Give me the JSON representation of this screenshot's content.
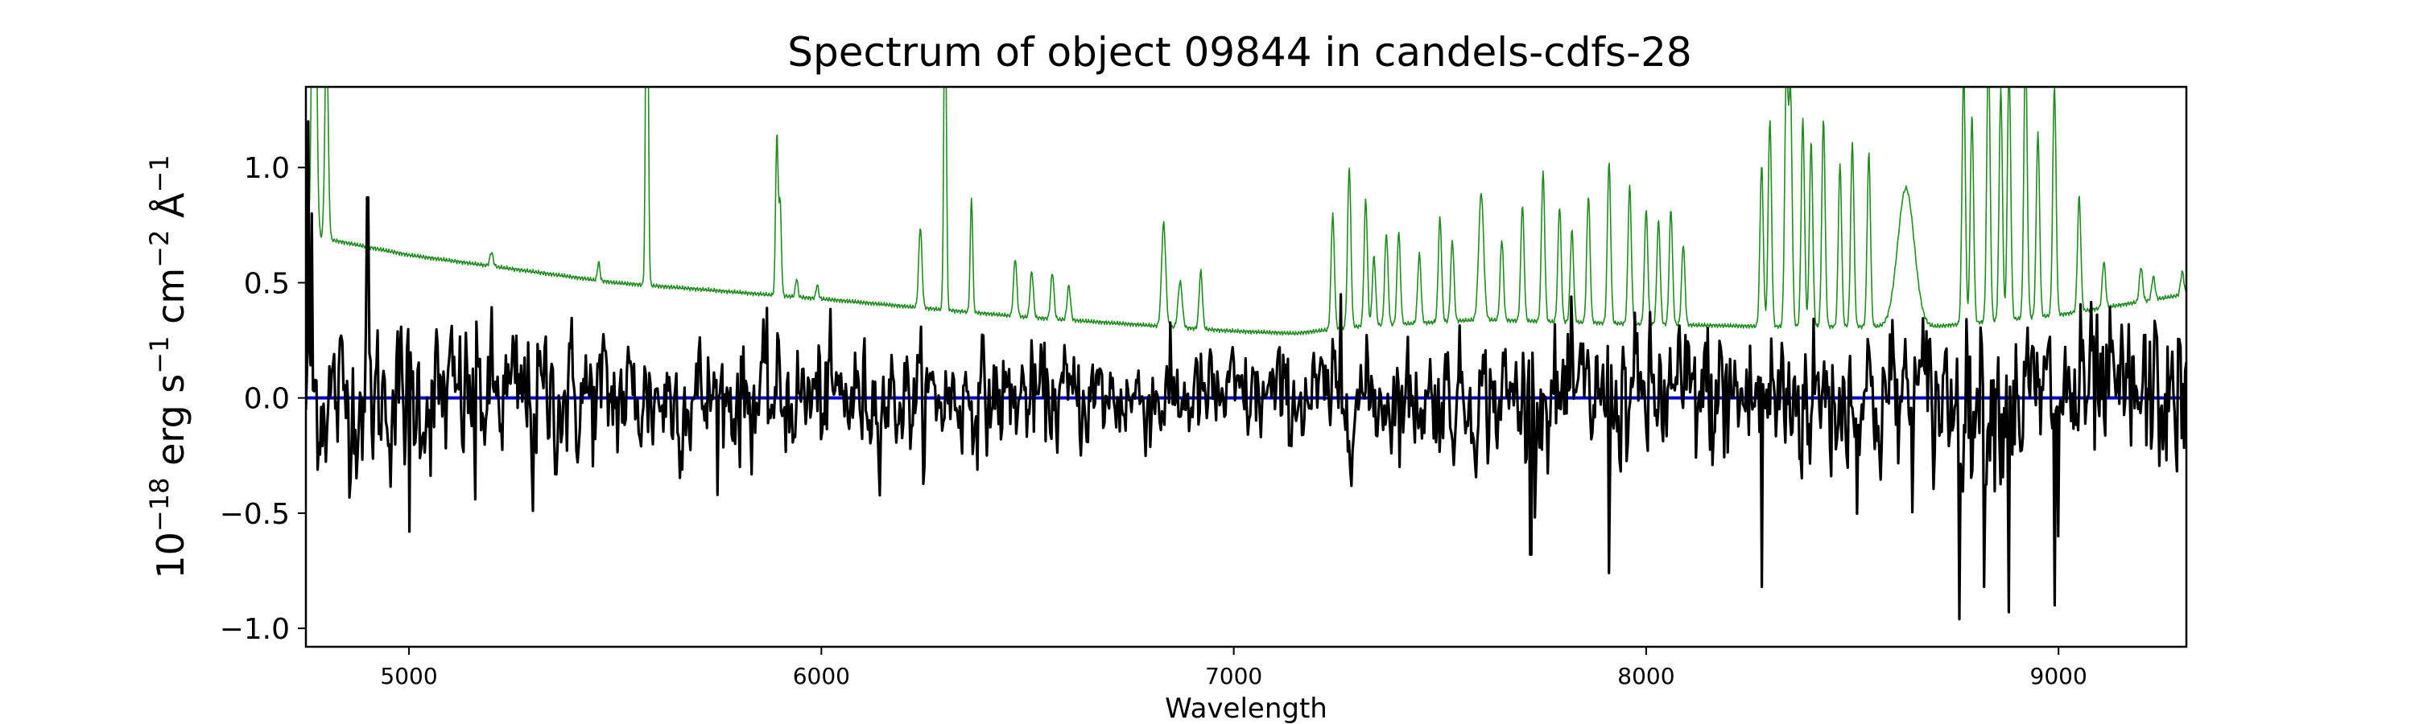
{
  "chart_data": {
    "type": "line",
    "title": "Spectrum of object 09844 in candels-cdfs-28",
    "xlabel": "Wavelength",
    "ylabel_parts": [
      "10",
      "−18",
      " erg s",
      "−1",
      " cm",
      "−2",
      " Å",
      "−1"
    ],
    "xlim": [
      4750,
      9310
    ],
    "ylim": [
      -1.08,
      1.35
    ],
    "x_ticks": [
      5000,
      6000,
      7000,
      8000,
      9000
    ],
    "x_tick_labels": [
      "5000",
      "6000",
      "7000",
      "8000",
      "9000"
    ],
    "y_ticks": [
      1.0,
      0.5,
      0.0,
      -0.5,
      -1.0
    ],
    "y_tick_labels": [
      "1.0",
      "0.5",
      "0.0",
      "−0.5",
      "−1.0"
    ],
    "grid": false,
    "series": [
      {
        "color": "#228b22",
        "continuum": {
          "x": [
            4750,
            4800,
            5000,
            5500,
            6000,
            6500,
            7000,
            7150,
            7300,
            7600,
            8000,
            8300,
            8700,
            9000,
            9310
          ],
          "y": [
            0.7,
            0.69,
            0.62,
            0.5,
            0.43,
            0.35,
            0.29,
            0.28,
            0.31,
            0.34,
            0.32,
            0.31,
            0.31,
            0.36,
            0.45
          ]
        },
        "lines": [
          [
            4770,
            1.9,
            5
          ],
          [
            4800,
            0.9,
            4
          ],
          [
            5200,
            0.06,
            4
          ],
          [
            5460,
            0.08,
            3
          ],
          [
            5577,
            1.9,
            3
          ],
          [
            5892,
            0.7,
            3
          ],
          [
            5900,
            0.4,
            3
          ],
          [
            5940,
            0.08,
            3
          ],
          [
            5990,
            0.06,
            3
          ],
          [
            6240,
            0.35,
            4
          ],
          [
            6300,
            1.5,
            3
          ],
          [
            6364,
            0.5,
            3
          ],
          [
            6470,
            0.25,
            4
          ],
          [
            6510,
            0.2,
            4
          ],
          [
            6560,
            0.2,
            4
          ],
          [
            6600,
            0.15,
            4
          ],
          [
            6830,
            0.45,
            5
          ],
          [
            6870,
            0.2,
            5
          ],
          [
            6920,
            0.25,
            4
          ],
          [
            7240,
            0.5,
            4
          ],
          [
            7280,
            0.7,
            4
          ],
          [
            7320,
            0.55,
            4
          ],
          [
            7340,
            0.3,
            4
          ],
          [
            7370,
            0.4,
            4
          ],
          [
            7400,
            0.4,
            4
          ],
          [
            7450,
            0.3,
            4
          ],
          [
            7500,
            0.45,
            4
          ],
          [
            7530,
            0.35,
            4
          ],
          [
            7600,
            0.55,
            6
          ],
          [
            7650,
            0.35,
            4
          ],
          [
            7700,
            0.5,
            4
          ],
          [
            7750,
            0.65,
            4
          ],
          [
            7790,
            0.5,
            4
          ],
          [
            7820,
            0.4,
            4
          ],
          [
            7860,
            0.55,
            4
          ],
          [
            7910,
            0.7,
            4
          ],
          [
            7960,
            0.6,
            4
          ],
          [
            8000,
            0.5,
            4
          ],
          [
            8030,
            0.45,
            4
          ],
          [
            8060,
            0.5,
            4
          ],
          [
            8090,
            0.35,
            4
          ],
          [
            8280,
            0.7,
            4
          ],
          [
            8300,
            0.9,
            4
          ],
          [
            8340,
            1.1,
            4
          ],
          [
            8350,
            1.0,
            4
          ],
          [
            8380,
            0.9,
            4
          ],
          [
            8400,
            0.8,
            4
          ],
          [
            8430,
            0.9,
            4
          ],
          [
            8470,
            0.7,
            4
          ],
          [
            8500,
            0.8,
            4
          ],
          [
            8540,
            0.75,
            4
          ],
          [
            8630,
            0.6,
            20
          ],
          [
            8770,
            1.1,
            4
          ],
          [
            8790,
            0.9,
            4
          ],
          [
            8830,
            1.2,
            4
          ],
          [
            8860,
            1.0,
            4
          ],
          [
            8880,
            1.1,
            4
          ],
          [
            8920,
            1.2,
            4
          ],
          [
            8950,
            0.8,
            4
          ],
          [
            8990,
            1.0,
            4
          ],
          [
            9050,
            0.5,
            4
          ],
          [
            9110,
            0.2,
            4
          ],
          [
            9200,
            0.15,
            4
          ],
          [
            9230,
            0.1,
            4
          ],
          [
            9300,
            0.1,
            4
          ]
        ]
      },
      {
        "color": "#0000cc",
        "x": [
          4750,
          9310
        ],
        "y": [
          0.0,
          0.0
        ]
      },
      {
        "color": "#000000",
        "x_start": 4750,
        "x_end": 9310,
        "points": 1600,
        "noise_sigma": [
          [
            4750,
            0.3
          ],
          [
            5400,
            0.26
          ],
          [
            6200,
            0.2
          ],
          [
            7100,
            0.18
          ],
          [
            7700,
            0.23
          ],
          [
            8300,
            0.3
          ],
          [
            9310,
            0.3
          ]
        ],
        "spikes": [
          [
            4755,
            1.2
          ],
          [
            4765,
            0.8
          ],
          [
            4900,
            0.87
          ],
          [
            5000,
            -0.58
          ],
          [
            5300,
            -0.49
          ],
          [
            5160,
            -0.44
          ],
          [
            7260,
            0.45
          ],
          [
            7720,
            -0.68
          ],
          [
            7910,
            -0.76
          ],
          [
            8280,
            -0.82
          ],
          [
            8760,
            -0.96
          ],
          [
            8820,
            -0.82
          ],
          [
            8880,
            -0.93
          ],
          [
            8990,
            -0.9
          ],
          [
            9000,
            -0.6
          ]
        ]
      }
    ]
  }
}
